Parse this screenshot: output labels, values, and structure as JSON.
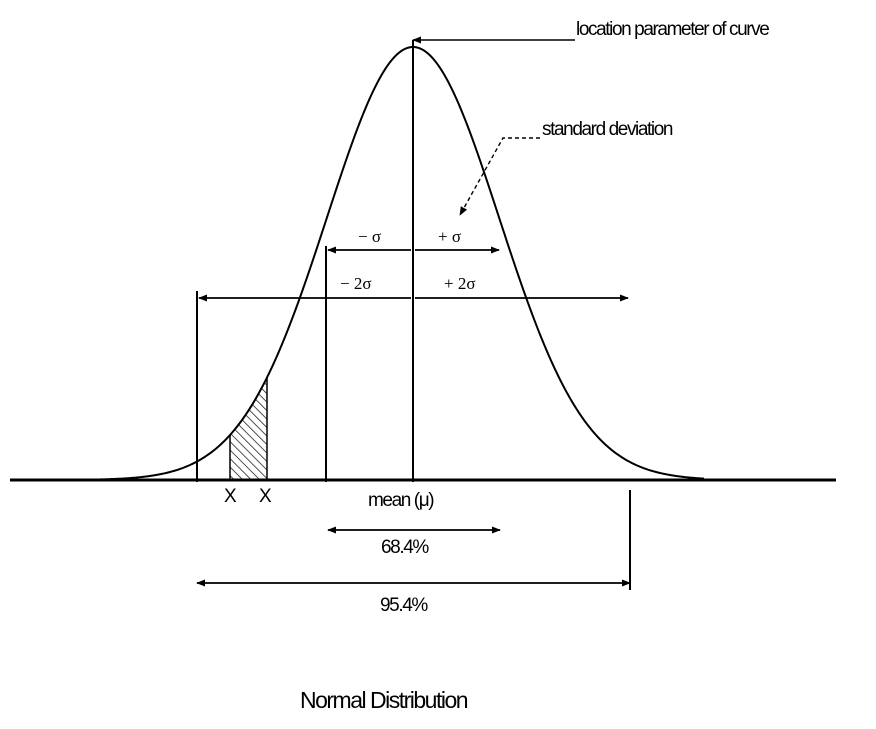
{
  "title": "Normal Distribution",
  "annotations": {
    "location": "location parameter of curve",
    "std_dev": "standard deviation",
    "minus_sigma": "− σ",
    "plus_sigma": "+ σ",
    "minus_two_sigma": "− 2σ",
    "plus_two_sigma": "+ 2σ",
    "mean": "mean (μ)",
    "x1": "X",
    "x2": "X",
    "pct_one_sigma": "68.4%",
    "pct_two_sigma": "95.4%"
  },
  "colors": {
    "ink": "#000000",
    "background": "#ffffff"
  }
}
